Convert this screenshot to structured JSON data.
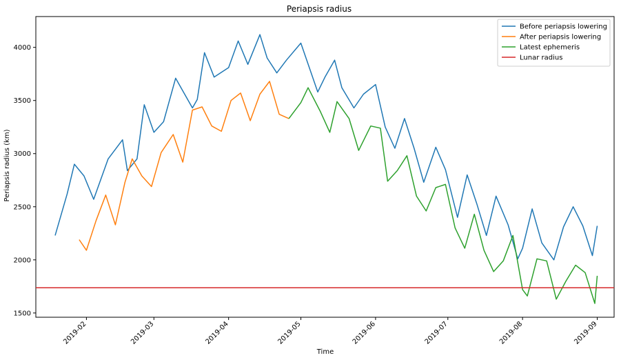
{
  "chart_data": {
    "type": "line",
    "title": "Periapsis radius",
    "xlabel": "Time",
    "ylabel": "Periapsis radius (km)",
    "xlim": [
      "2019-01-11",
      "2019-09-08"
    ],
    "ylim": [
      1460,
      4290
    ],
    "x_ticks": [
      "2019-02-01",
      "2019-03-01",
      "2019-04-01",
      "2019-05-01",
      "2019-06-01",
      "2019-07-01",
      "2019-08-01",
      "2019-09-01"
    ],
    "x_tick_labels": [
      "2019-02",
      "2019-03",
      "2019-04",
      "2019-05",
      "2019-06",
      "2019-07",
      "2019-08",
      "2019-09"
    ],
    "y_ticks": [
      1500,
      2000,
      2500,
      3000,
      3500,
      4000
    ],
    "y_tick_labels": [
      "1500",
      "2000",
      "2500",
      "3000",
      "3500",
      "4000"
    ],
    "grid": false,
    "legend_position": "top-right",
    "series": [
      {
        "name": "Before periapsis lowering",
        "color": "#1f77b4",
        "x": [
          "2019-01-19",
          "2019-01-24",
          "2019-01-27",
          "2019-01-31",
          "2019-02-04",
          "2019-02-10",
          "2019-02-16",
          "2019-02-18",
          "2019-02-22",
          "2019-02-25",
          "2019-03-01",
          "2019-03-05",
          "2019-03-10",
          "2019-03-17",
          "2019-03-19",
          "2019-03-22",
          "2019-03-26",
          "2019-04-01",
          "2019-04-05",
          "2019-04-09",
          "2019-04-14",
          "2019-04-17",
          "2019-04-21",
          "2019-04-25",
          "2019-05-01",
          "2019-05-08",
          "2019-05-11",
          "2019-05-15",
          "2019-05-18",
          "2019-05-23",
          "2019-05-27",
          "2019-06-01",
          "2019-06-05",
          "2019-06-09",
          "2019-06-13",
          "2019-06-17",
          "2019-06-21",
          "2019-06-26",
          "2019-06-30",
          "2019-07-05",
          "2019-07-09",
          "2019-07-13",
          "2019-07-17",
          "2019-07-21",
          "2019-07-26",
          "2019-07-30",
          "2019-08-01",
          "2019-08-05",
          "2019-08-09",
          "2019-08-14",
          "2019-08-18",
          "2019-08-22",
          "2019-08-26",
          "2019-08-30",
          "2019-09-01"
        ],
        "values": [
          2230,
          2620,
          2900,
          2790,
          2570,
          2950,
          3130,
          2840,
          2950,
          3460,
          3200,
          3300,
          3710,
          3430,
          3510,
          3950,
          3720,
          3810,
          4060,
          3840,
          4120,
          3900,
          3760,
          3880,
          4040,
          3580,
          3720,
          3880,
          3620,
          3430,
          3560,
          3650,
          3250,
          3050,
          3330,
          3050,
          2730,
          3060,
          2850,
          2400,
          2800,
          2530,
          2230,
          2600,
          2330,
          2010,
          2110,
          2480,
          2160,
          2000,
          2310,
          2500,
          2320,
          2040,
          2320
        ]
      },
      {
        "name": "After periapsis lowering",
        "color": "#ff7f0e",
        "x": [
          "2019-01-29",
          "2019-02-01",
          "2019-02-05",
          "2019-02-09",
          "2019-02-13",
          "2019-02-17",
          "2019-02-20",
          "2019-02-24",
          "2019-02-28",
          "2019-03-04",
          "2019-03-09",
          "2019-03-13",
          "2019-03-17",
          "2019-03-21",
          "2019-03-25",
          "2019-03-29",
          "2019-04-02",
          "2019-04-06",
          "2019-04-10",
          "2019-04-14",
          "2019-04-18",
          "2019-04-22",
          "2019-04-26"
        ],
        "values": [
          2190,
          2090,
          2370,
          2610,
          2330,
          2730,
          2950,
          2790,
          2690,
          3010,
          3180,
          2920,
          3410,
          3440,
          3260,
          3210,
          3500,
          3570,
          3310,
          3560,
          3680,
          3370,
          3330
        ]
      },
      {
        "name": "Latest ephemeris",
        "color": "#2ca02c",
        "x": [
          "2019-04-26",
          "2019-05-01",
          "2019-05-04",
          "2019-05-09",
          "2019-05-13",
          "2019-05-16",
          "2019-05-21",
          "2019-05-25",
          "2019-05-30",
          "2019-06-03",
          "2019-06-06",
          "2019-06-10",
          "2019-06-14",
          "2019-06-18",
          "2019-06-22",
          "2019-06-26",
          "2019-06-30",
          "2019-07-04",
          "2019-07-08",
          "2019-07-12",
          "2019-07-16",
          "2019-07-20",
          "2019-07-24",
          "2019-07-28",
          "2019-08-01",
          "2019-08-03",
          "2019-08-07",
          "2019-08-11",
          "2019-08-15",
          "2019-08-19",
          "2019-08-23",
          "2019-08-27",
          "2019-08-31",
          "2019-09-01"
        ],
        "values": [
          3330,
          3480,
          3620,
          3400,
          3200,
          3490,
          3330,
          3030,
          3260,
          3240,
          2740,
          2840,
          2980,
          2600,
          2460,
          2680,
          2710,
          2300,
          2110,
          2430,
          2090,
          1890,
          1990,
          2230,
          1720,
          1660,
          2010,
          1990,
          1630,
          1800,
          1950,
          1880,
          1590,
          1850
        ]
      },
      {
        "name": "Lunar radius",
        "color": "#d62728",
        "x": [
          "2019-01-11",
          "2019-09-08"
        ],
        "values": [
          1737,
          1737
        ]
      }
    ]
  }
}
